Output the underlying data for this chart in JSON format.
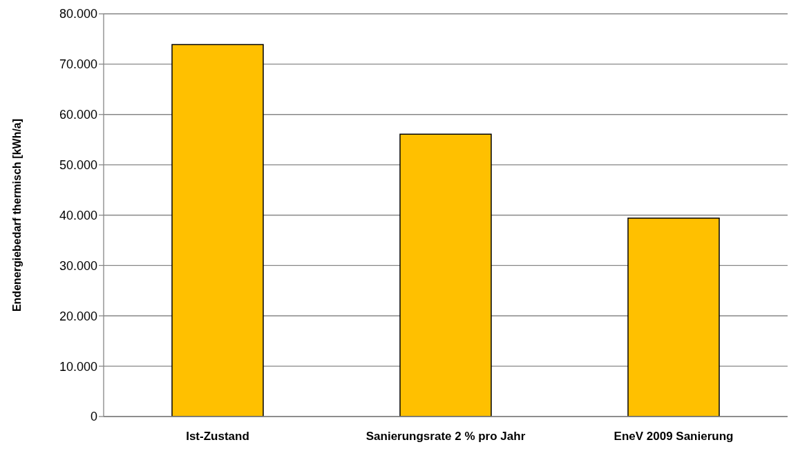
{
  "chart_data": {
    "type": "bar",
    "ylabel": "Endenergiebedarf thermisch [kWh/a]",
    "categories": [
      "Ist-Zustand",
      "Sanierungsrate 2 % pro Jahr",
      "EneV 2009 Sanierung"
    ],
    "values": [
      73900,
      56100,
      39400
    ],
    "color": "#ffc000",
    "ylim": [
      0,
      80000
    ],
    "yticks": [
      0,
      {
        "value": 10000,
        "label": "10.000"
      },
      {
        "value": 20000,
        "label": "20.000"
      },
      {
        "value": 30000,
        "label": "30.000"
      },
      {
        "value": 40000,
        "label": "40.000"
      },
      {
        "value": 50000,
        "label": "50.000"
      },
      {
        "value": 60000,
        "label": "60.000"
      },
      {
        "value": 70000,
        "label": "70.000"
      },
      {
        "value": 80000,
        "label": "80.000"
      }
    ],
    "grid": "y"
  }
}
